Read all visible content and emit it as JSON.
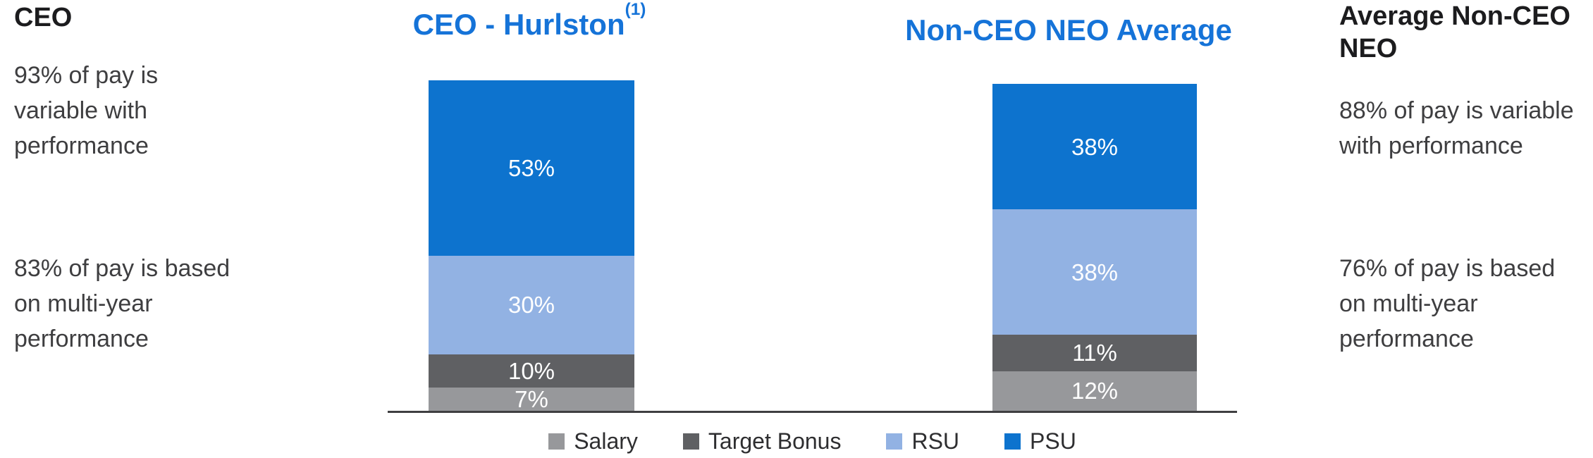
{
  "left_panel": {
    "heading": "CEO",
    "stat1_lines": [
      "93% of pay is",
      "variable with",
      "performance"
    ],
    "stat2_lines": [
      "83% of pay is based",
      "on multi-year",
      "performance"
    ]
  },
  "right_panel": {
    "heading_lines": [
      "Average Non-CEO",
      "NEO"
    ],
    "stat1_lines": [
      "88% of pay is variable",
      "with performance"
    ],
    "stat2_lines": [
      "76% of pay is based",
      "on multi-year",
      "performance"
    ]
  },
  "chart_data": {
    "type": "bar",
    "variant": "stacked-percentage-column",
    "titles": {
      "ceo": "CEO - Hurlston",
      "ceo_footnote": "(1)",
      "neo": "Non-CEO NEO Average"
    },
    "title_color": "#1573D8",
    "categories": [
      "CEO - Hurlston",
      "Non-CEO NEO Average"
    ],
    "unit": "%",
    "series": [
      {
        "name": "Salary",
        "color": "#97989B",
        "values": [
          7,
          12
        ]
      },
      {
        "name": "Target Bonus",
        "color": "#5F6063",
        "values": [
          10,
          11
        ]
      },
      {
        "name": "RSU",
        "color": "#92B2E3",
        "values": [
          30,
          38
        ]
      },
      {
        "name": "PSU",
        "color": "#0D73CE",
        "values": [
          53,
          38
        ]
      }
    ],
    "stack_order_top_to_bottom": [
      "PSU",
      "RSU",
      "Target Bonus",
      "Salary"
    ],
    "value_labels": "inside-white",
    "legend": [
      "Salary",
      "Target Bonus",
      "RSU",
      "PSU"
    ],
    "legend_position": "bottom",
    "ylim": [
      0,
      100
    ],
    "grid": false,
    "axis_line_color": "#3F3F41"
  }
}
